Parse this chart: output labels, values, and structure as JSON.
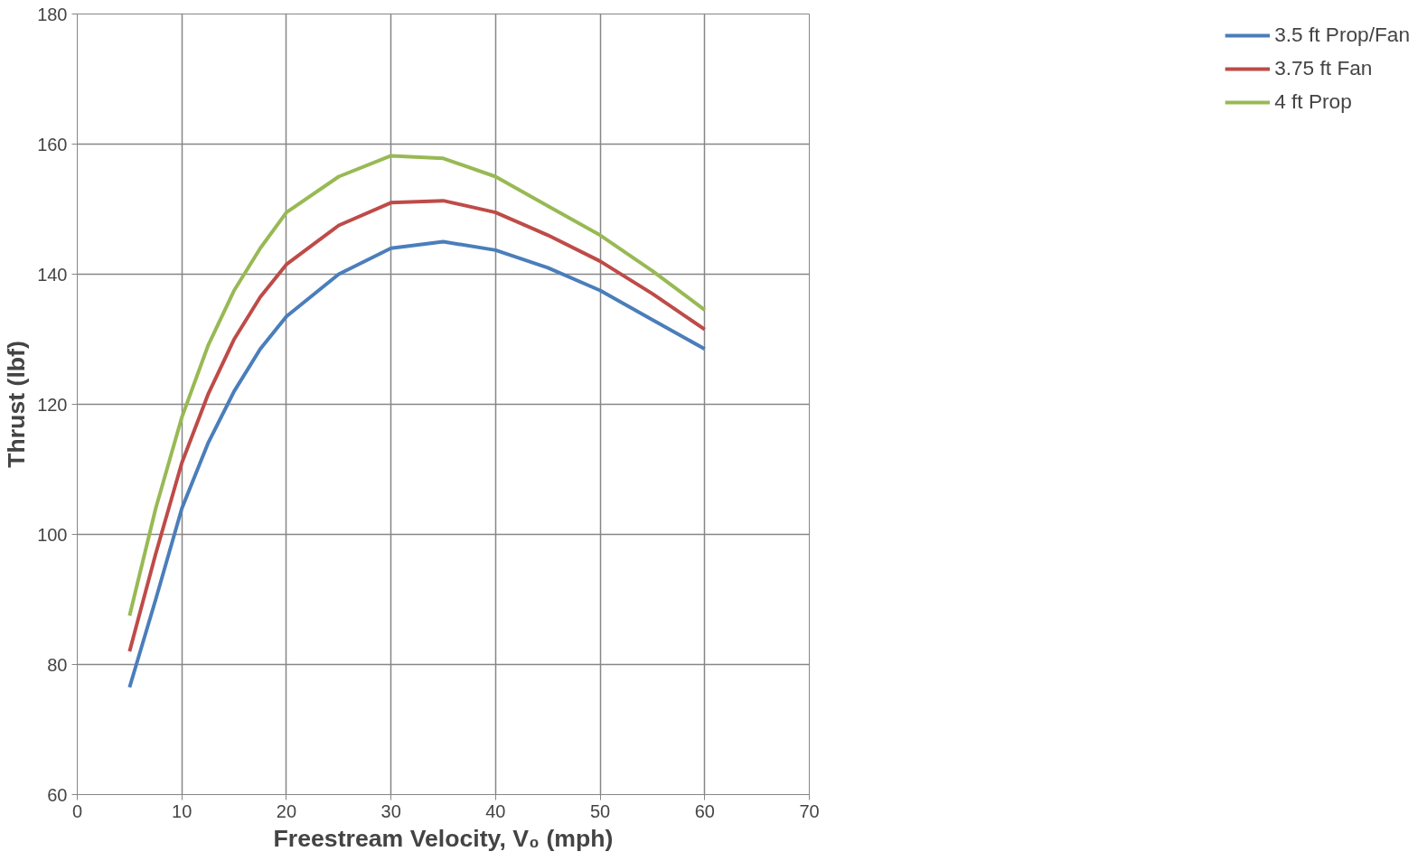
{
  "chart_data": {
    "type": "line",
    "xlabel": "Freestream Velocity, V₀ (mph)",
    "ylabel": "Thrust (lbf)",
    "x": [
      5,
      7.5,
      10,
      12.5,
      15,
      17.5,
      20,
      25,
      30,
      35,
      40,
      45,
      50,
      55,
      60
    ],
    "series": [
      {
        "name": "3.5 ft Prop/Fan",
        "color": "#4a7ebb",
        "values": [
          76.5,
          90,
          104,
          114,
          122,
          128.5,
          133.5,
          140,
          144,
          145,
          143.7,
          141,
          137.5,
          133,
          128.5
        ]
      },
      {
        "name": "3.75 ft Fan",
        "color": "#be4b48",
        "values": [
          82,
          97,
          111,
          121.5,
          130,
          136.5,
          141.5,
          147.5,
          151,
          151.3,
          149.5,
          146,
          142,
          137,
          131.5
        ]
      },
      {
        "name": "4 ft Prop",
        "color": "#98b954",
        "values": [
          87.5,
          104,
          118,
          129,
          137.5,
          144,
          149.5,
          155,
          158.2,
          157.8,
          155,
          150.5,
          146,
          140.5,
          134.5
        ]
      }
    ],
    "xlim": [
      0,
      70
    ],
    "xticks": [
      0,
      10,
      20,
      30,
      40,
      50,
      60,
      70
    ],
    "ylim": [
      60,
      180
    ],
    "yticks": [
      60,
      80,
      100,
      120,
      140,
      160,
      180
    ],
    "grid": true,
    "legend": "right",
    "marker": "none",
    "line_style": "solid"
  }
}
